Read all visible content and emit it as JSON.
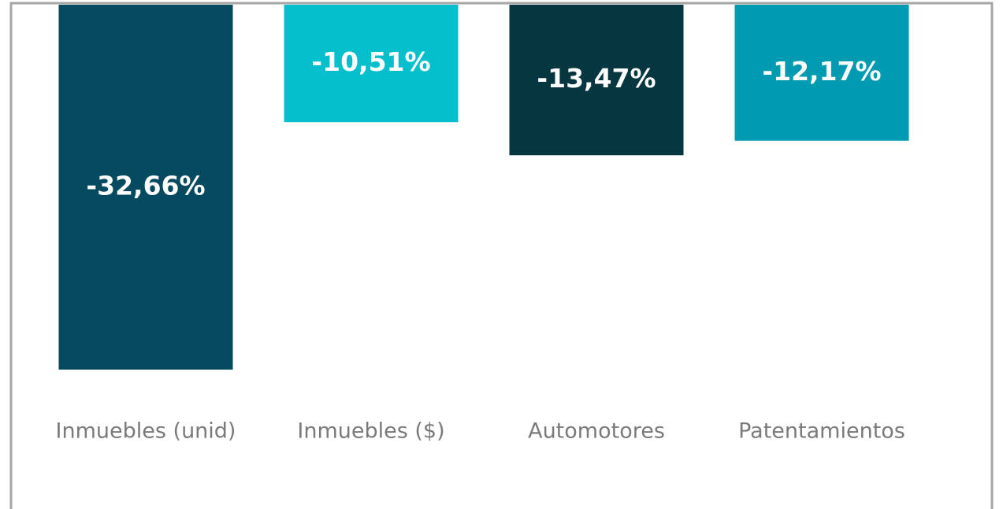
{
  "chart_data": {
    "type": "bar",
    "categories": [
      "Inmuebles (unid)",
      "Inmuebles ($)",
      "Automotores",
      "Patentamientos"
    ],
    "values": [
      -32.66,
      -10.51,
      -13.47,
      -12.17
    ],
    "value_labels": [
      "-32,66%",
      "-10,51%",
      "-13,47%",
      "-12,17%"
    ],
    "colors": [
      "#054a5e",
      "#06bfcc",
      "#063640",
      "#009bb0"
    ],
    "ylim": [
      -35,
      0
    ]
  }
}
